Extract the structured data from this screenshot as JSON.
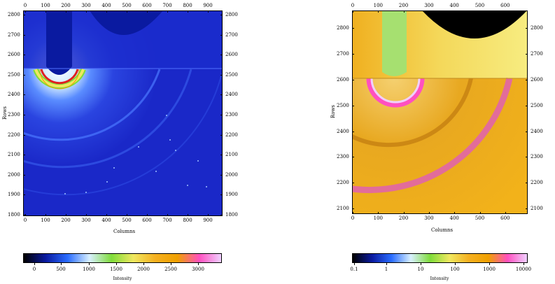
{
  "panels": [
    {
      "id": "left",
      "x_axis_title": "Columns",
      "y_axis_title": "Rows",
      "x_ticks": [
        "0",
        "100",
        "200",
        "300",
        "400",
        "500",
        "600",
        "700",
        "800",
        "900"
      ],
      "y_ticks": [
        "1800",
        "1900",
        "2000",
        "2100",
        "2200",
        "2300",
        "2400",
        "2500",
        "2600",
        "2700",
        "2800"
      ],
      "colorbar": {
        "title": "Intensity",
        "labels": [
          "0",
          "500",
          "1000",
          "1500",
          "2000",
          "2500",
          "3000"
        ],
        "colors": [
          "#000000",
          "#0a1aa0",
          "#2a6cff",
          "#d8f0ff",
          "#7fdc3a",
          "#f0e860",
          "#f5b020",
          "#f0a000",
          "#ff50c0",
          "#f0d0ff"
        ]
      }
    },
    {
      "id": "right",
      "x_axis_title": "Columns",
      "y_axis_title": "Rows",
      "x_ticks": [
        "0",
        "100",
        "200",
        "300",
        "400",
        "500",
        "600"
      ],
      "y_ticks": [
        "2100",
        "2200",
        "2300",
        "2400",
        "2500",
        "2600",
        "2700",
        "2800"
      ],
      "colorbar": {
        "title": "Intensity",
        "labels": [
          "0.1",
          "1",
          "10",
          "100",
          "1000",
          "10000"
        ],
        "colors": [
          "#000000",
          "#0a1aa0",
          "#2a6cff",
          "#d8f0ff",
          "#7fdc3a",
          "#f0e860",
          "#f5b020",
          "#f0a000",
          "#ff50c0",
          "#f0d0ff"
        ]
      }
    }
  ]
}
